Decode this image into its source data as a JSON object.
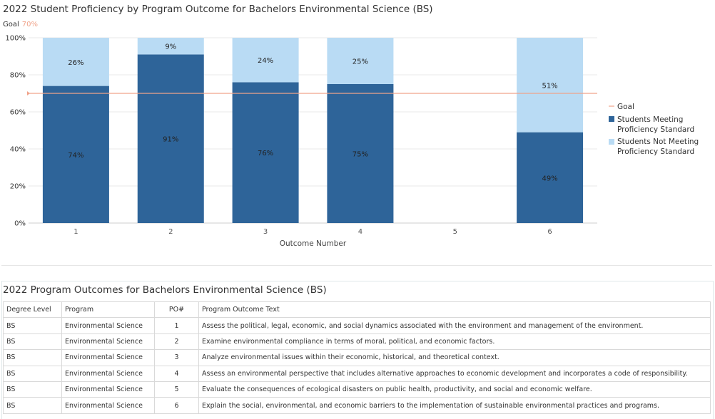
{
  "chart_data": {
    "type": "bar",
    "stacked": true,
    "title": "2022 Student Proficiency by Program Outcome for Bachelors Environmental Science (BS)",
    "goal_label": "Goal",
    "goal_value_label": "70%",
    "goal": 70,
    "xlabel": "Outcome Number",
    "ylabel": "",
    "ylim": [
      0,
      100
    ],
    "yticks": [
      "0%",
      "20%",
      "40%",
      "60%",
      "80%",
      "100%"
    ],
    "categories": [
      "1",
      "2",
      "3",
      "4",
      "5",
      "6"
    ],
    "series": [
      {
        "name": "Students Meeting Proficiency Standard",
        "color": "#2e6499",
        "values": [
          74,
          91,
          76,
          75,
          null,
          49
        ],
        "labels": [
          "74%",
          "91%",
          "76%",
          "75%",
          "",
          "49%"
        ]
      },
      {
        "name": "Students Not Meeting Proficiency Standard",
        "color": "#b9dbf4",
        "values": [
          26,
          9,
          24,
          25,
          null,
          51
        ],
        "labels": [
          "26%",
          "9%",
          "24%",
          "25%",
          "",
          "51%"
        ]
      }
    ],
    "legend": {
      "position": "right",
      "goal_entry": "Goal",
      "goal_color": "#f0a38a",
      "series_lines": [
        [
          "Students Meeting",
          "Proficiency Standard"
        ],
        [
          "Students Not Meeting",
          "Proficiency Standard"
        ]
      ]
    },
    "grid": true
  },
  "table": {
    "title": "2022 Program Outcomes for Bachelors Environmental Science (BS)",
    "headers": [
      "Degree Level",
      "Program",
      "PO#",
      "Program Outcome Text"
    ],
    "rows": [
      [
        "BS",
        "Environmental Science",
        "1",
        "Assess the political, legal, economic, and social dynamics associated with the environment and management of the environment."
      ],
      [
        "BS",
        "Environmental Science",
        "2",
        "Examine environmental compliance in terms of moral, political, and economic factors."
      ],
      [
        "BS",
        "Environmental Science",
        "3",
        "Analyze environmental issues within their economic, historical, and theoretical context."
      ],
      [
        "BS",
        "Environmental Science",
        "4",
        "Assess an environmental perspective that includes alternative approaches to economic development and incorporates a code of responsibility."
      ],
      [
        "BS",
        "Environmental Science",
        "5",
        "Evaluate the consequences of ecological disasters on public health, productivity, and social and economic welfare."
      ],
      [
        "BS",
        "Environmental Science",
        "6",
        "Explain the social, environmental, and economic barriers to the implementation of sustainable environmental practices and programs."
      ]
    ]
  }
}
